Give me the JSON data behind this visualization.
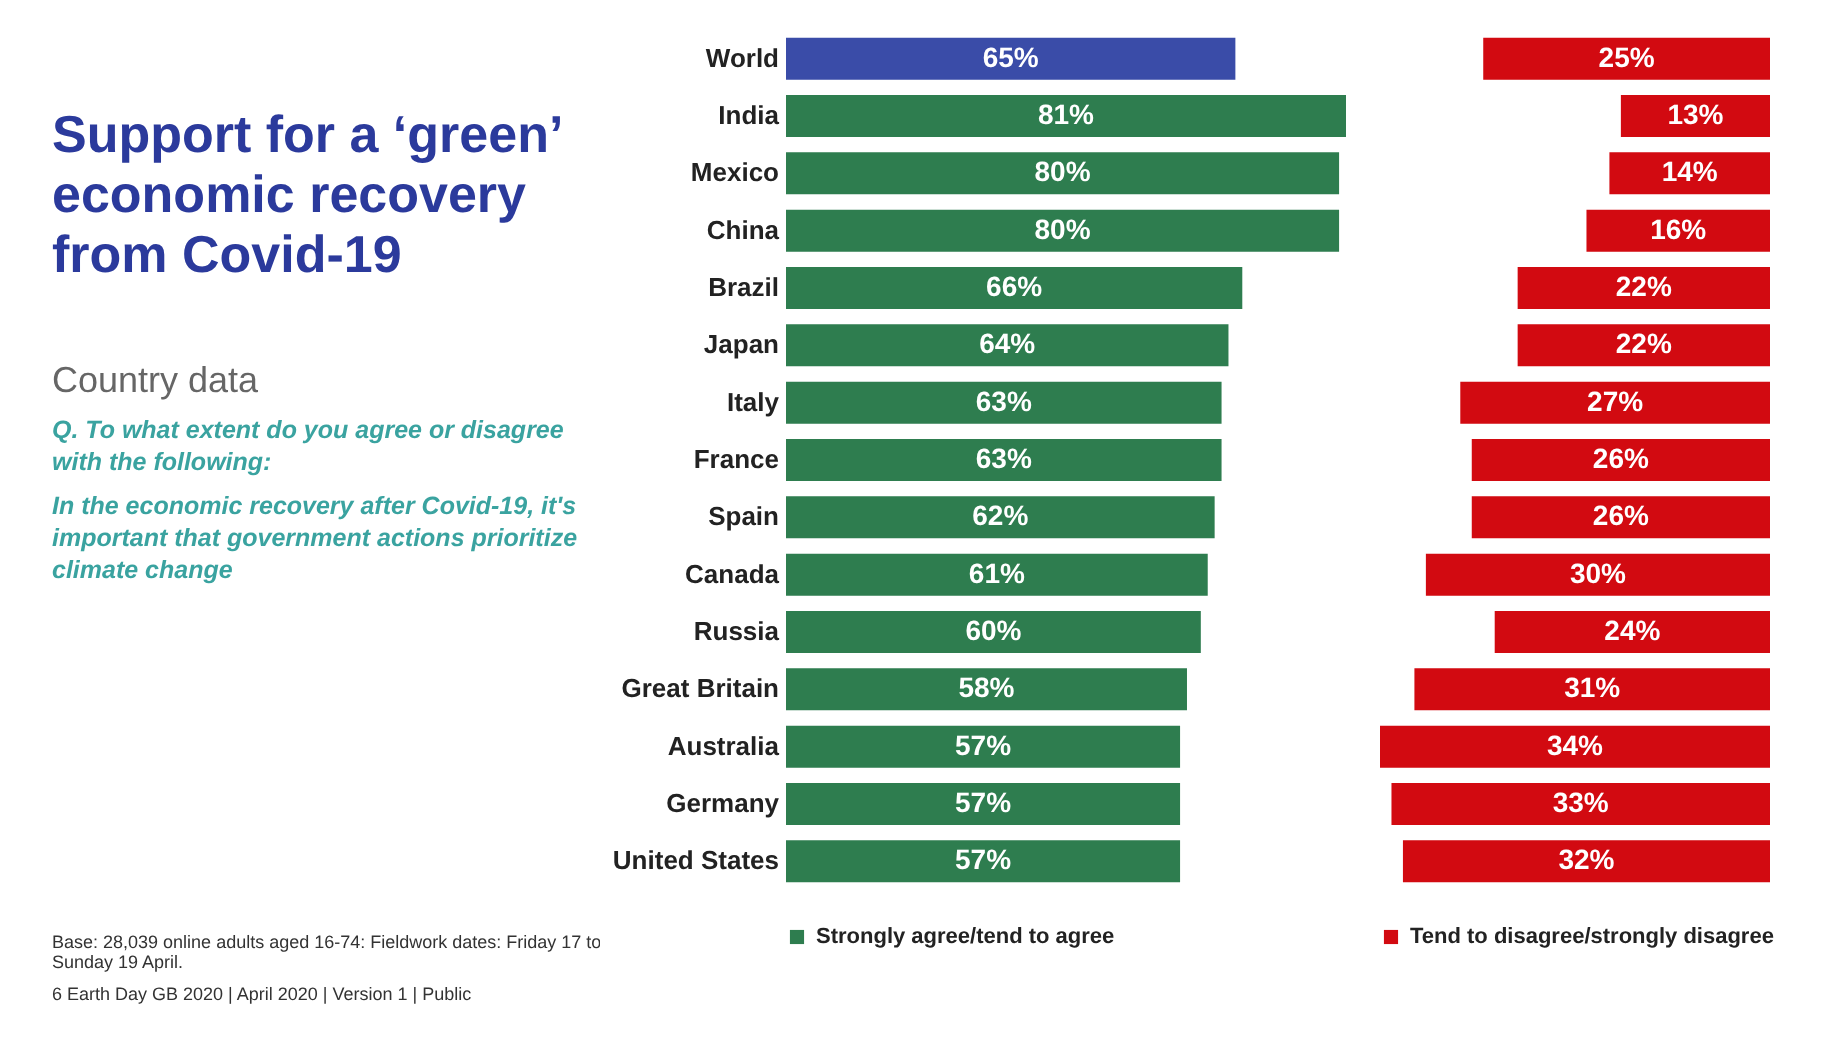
{
  "chart_data": [
    {
      "type": "bar",
      "orientation": "horizontal",
      "title": "Support for a ‘green’ economic recovery from Covid-19",
      "annotations": [
        "Country data",
        "Q. To what extent do you agree or disagree with the following:",
        "In the economic recovery after Covid-19, it's important that government actions prioritize climate change",
        "Base: 28,039 online adults aged 16-74: Fieldwork dates: Friday 17 to Sunday 19 April.",
        "6  Earth Day GB 2020 | April 2020 | Version 1 | Public"
      ],
      "categories": [
        "World",
        "India",
        "Mexico",
        "China",
        "Brazil",
        "Japan",
        "Italy",
        "France",
        "Spain",
        "Canada",
        "Russia",
        "Great Britain",
        "Australia",
        "Germany",
        "United States"
      ],
      "series": [
        {
          "name": "Strongly agree/tend to agree",
          "color": "#2e7d4f",
          "values": [
            65,
            81,
            80,
            80,
            66,
            64,
            63,
            63,
            62,
            61,
            60,
            58,
            57,
            57,
            57
          ],
          "colors": [
            "#3a4ca8",
            "#2e7d4f",
            "#2e7d4f",
            "#2e7d4f",
            "#2e7d4f",
            "#2e7d4f",
            "#2e7d4f",
            "#2e7d4f",
            "#2e7d4f",
            "#2e7d4f",
            "#2e7d4f",
            "#2e7d4f",
            "#2e7d4f",
            "#2e7d4f",
            "#2e7d4f"
          ],
          "value_labels": [
            "65%",
            "81%",
            "80%",
            "80%",
            "66%",
            "64%",
            "63%",
            "63%",
            "62%",
            "61%",
            "60%",
            "58%",
            "57%",
            "57%",
            "57%"
          ]
        }
      ],
      "tick_labels": "y",
      "legend": "bottom"
    },
    {
      "type": "bar",
      "orientation": "horizontal",
      "categories": [
        null,
        null,
        null,
        null,
        null,
        null,
        null,
        null,
        null,
        null,
        null,
        null,
        null,
        null,
        null
      ],
      "series": [
        {
          "name": "Tend to disagree/strongly disagree",
          "color": "#d20a11",
          "values": [
            25,
            13,
            14,
            16,
            22,
            22,
            27,
            26,
            26,
            30,
            24,
            31,
            34,
            33,
            32
          ],
          "value_labels": [
            "25%",
            "13%",
            "14%",
            "16%",
            "22%",
            "22%",
            "27%",
            "26%",
            "26%",
            "30%",
            "24%",
            "31%",
            "34%",
            "33%",
            "32%"
          ]
        }
      ],
      "tick_labels": false,
      "legend": "bottom"
    }
  ]
}
